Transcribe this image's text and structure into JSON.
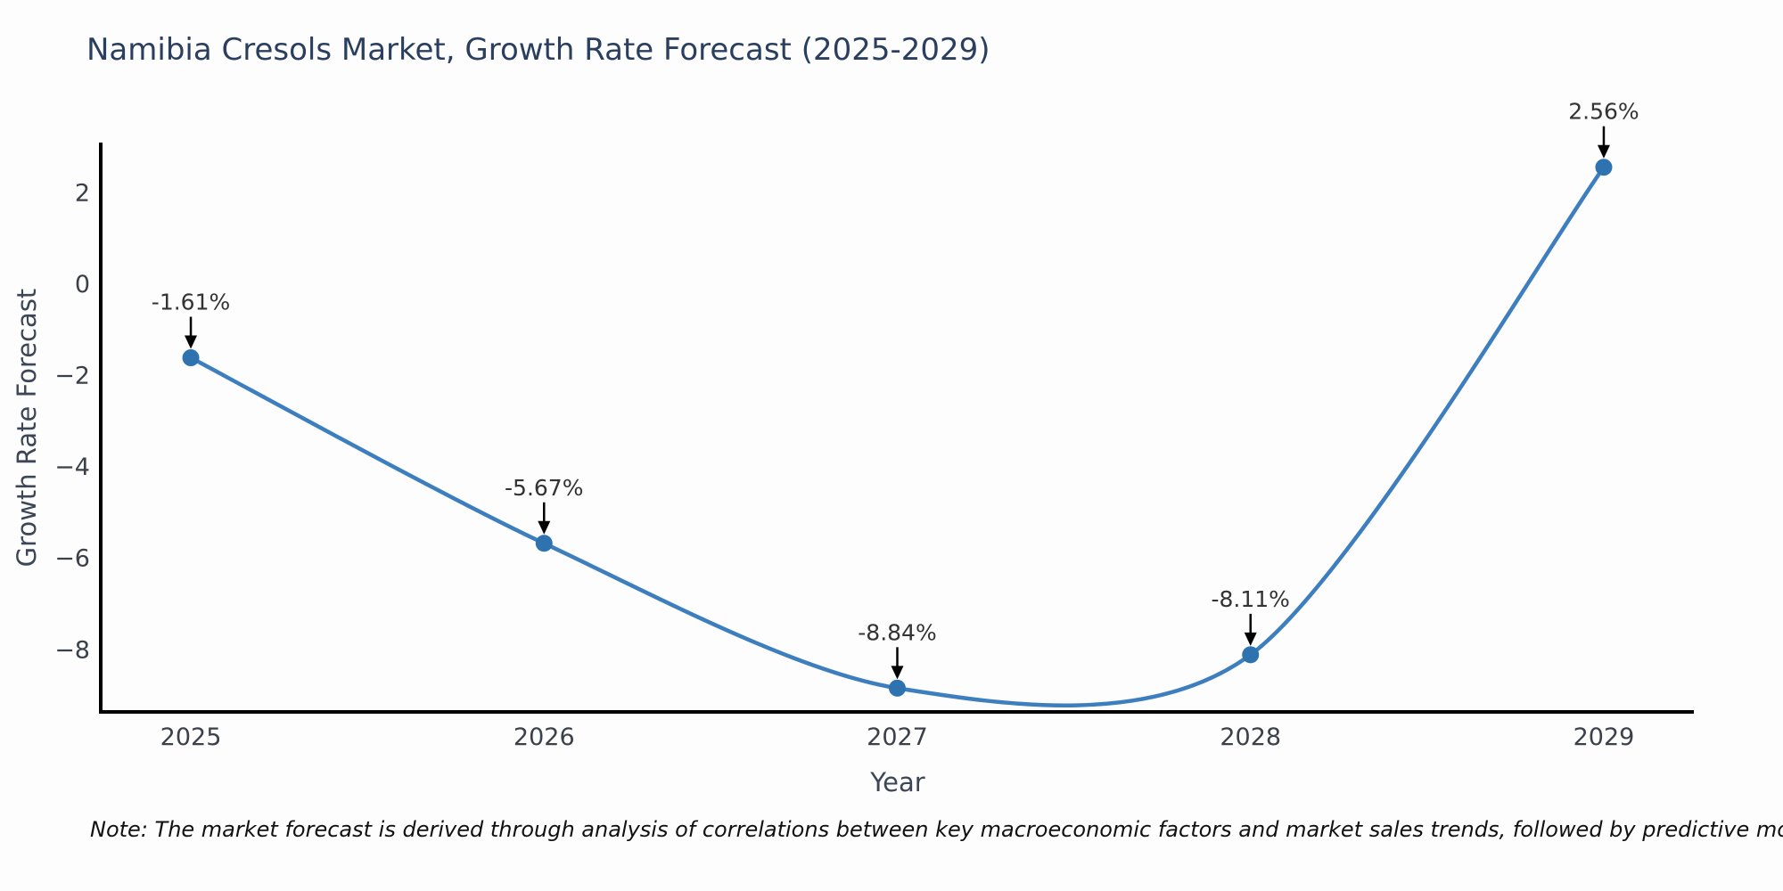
{
  "title": "Namibia Cresols Market, Growth Rate Forecast (2025-2029)",
  "note": "Note: The market forecast is derived through analysis of correlations between key macroeconomic factors and market sales trends, followed by predictive modeling to project future sales",
  "chart_data": {
    "type": "line",
    "title": "Namibia Cresols Market, Growth Rate Forecast (2025-2029)",
    "xlabel": "Year",
    "ylabel": "Growth Rate Forecast",
    "x": [
      2025,
      2026,
      2027,
      2028,
      2029
    ],
    "series": [
      {
        "name": "Growth Rate Forecast (%)",
        "values": [
          -1.61,
          -5.67,
          -8.84,
          -8.11,
          2.56
        ]
      }
    ],
    "point_labels": [
      "-1.61%",
      "-5.67%",
      "-8.84%",
      "-8.11%",
      "2.56%"
    ],
    "x_tick_labels": [
      "2025",
      "2026",
      "2027",
      "2028",
      "2029"
    ],
    "y_ticks": [
      2,
      0,
      -2,
      -4,
      -6,
      -8
    ],
    "y_tick_labels": [
      "2",
      "0",
      "−2",
      "−4",
      "−6",
      "−8"
    ],
    "xlim": [
      2024.745,
      2029.255
    ],
    "ylim": [
      -9.36,
      3.1
    ],
    "grid": false,
    "line_shape": "spline",
    "legend": "none",
    "colors": {
      "line": "#3d7ebf",
      "marker": "#2f72b0",
      "axis": "#000000",
      "arrow": "#000000",
      "title": "#2a3f5f",
      "tick": "#3b4049",
      "axis_title": "#3d4656",
      "annotation": "#333333",
      "note": "#111111",
      "background": "#fdfdfd"
    }
  }
}
